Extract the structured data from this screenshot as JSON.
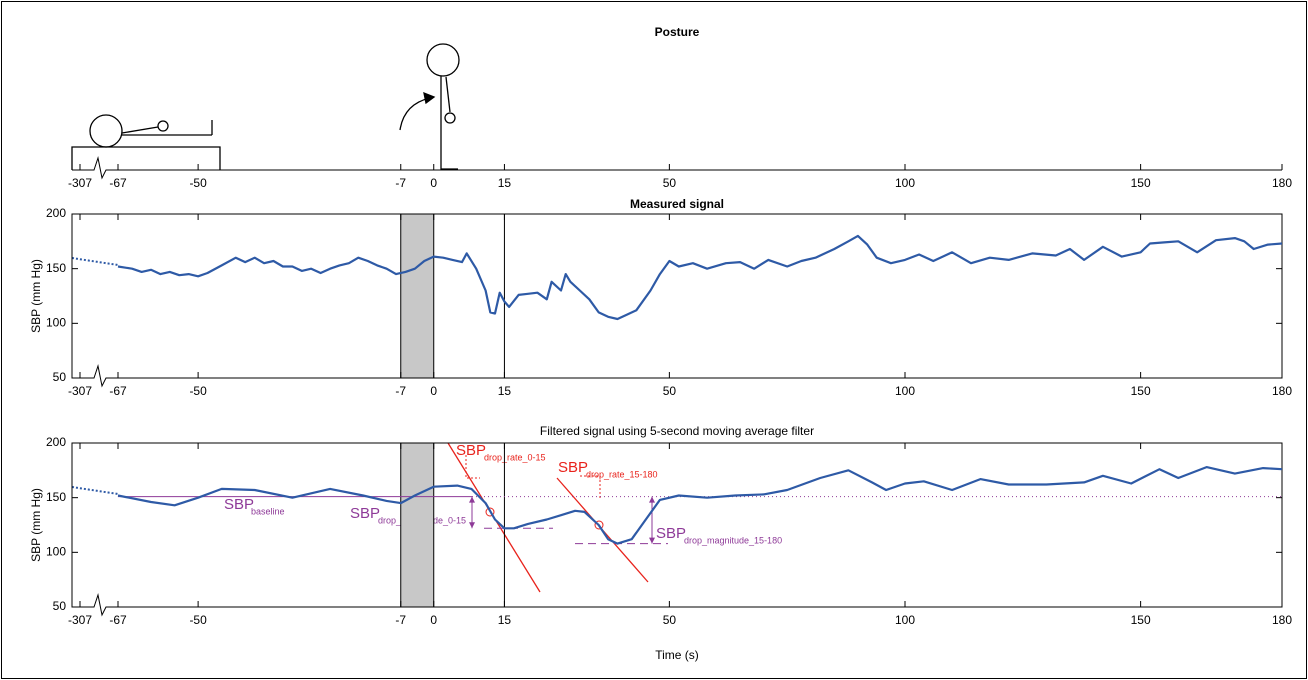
{
  "chart_data": [
    {
      "type": "timeline",
      "title": "Posture",
      "xlim": [
        -307,
        180
      ],
      "x_break": [
        -307,
        -67
      ],
      "xticks": [
        -307,
        -67,
        -50,
        -7,
        0,
        15,
        50,
        100,
        150,
        180
      ]
    },
    {
      "type": "line",
      "title": "Measured signal",
      "y_label": "SBP (mm Hg)",
      "xlim": [
        -307,
        180
      ],
      "x_break": [
        -307,
        -67
      ],
      "xticks": [
        -307,
        -67,
        -50,
        -7,
        0,
        15,
        50,
        100,
        150,
        180
      ],
      "ylim": [
        50,
        200
      ],
      "yticks": [
        50,
        100,
        150,
        200
      ],
      "shaded": [
        -7,
        0
      ],
      "vlines": [
        15
      ],
      "series": [
        {
          "color": "#2e5aa6",
          "x": [
            -67,
            -64,
            -62,
            -60,
            -58,
            -56,
            -54,
            -52,
            -50,
            -48,
            -45,
            -42,
            -40,
            -38,
            -36,
            -34,
            -32,
            -30,
            -28,
            -26,
            -24,
            -22,
            -20,
            -18,
            -16,
            -14,
            -12,
            -10,
            -8,
            -6,
            -4,
            -2,
            0,
            2,
            4,
            6,
            7,
            9,
            11,
            12,
            13,
            14,
            15,
            16,
            18,
            20,
            22,
            24,
            25,
            27,
            28,
            29,
            31,
            33,
            35,
            37,
            39,
            41,
            43,
            46,
            48,
            50,
            52,
            55,
            58,
            62,
            65,
            68,
            71,
            75,
            78,
            81,
            85,
            88,
            90,
            92,
            94,
            97,
            100,
            103,
            106,
            110,
            114,
            118,
            122,
            127,
            132,
            135,
            138,
            142,
            146,
            150,
            152,
            155,
            158,
            162,
            166,
            170,
            172,
            174,
            177,
            180
          ],
          "values": [
            152,
            150,
            147,
            149,
            145,
            147,
            144,
            145,
            143,
            146,
            153,
            160,
            156,
            160,
            155,
            157,
            152,
            152,
            148,
            150,
            146,
            150,
            153,
            155,
            160,
            157,
            153,
            150,
            145,
            147,
            150,
            157,
            161,
            160,
            158,
            156,
            164,
            150,
            130,
            110,
            109,
            128,
            120,
            115,
            126,
            127,
            128,
            122,
            138,
            130,
            145,
            138,
            130,
            122,
            110,
            106,
            104,
            108,
            112,
            130,
            145,
            157,
            152,
            155,
            150,
            155,
            156,
            150,
            158,
            152,
            157,
            160,
            168,
            175,
            180,
            172,
            160,
            155,
            158,
            163,
            157,
            165,
            155,
            160,
            158,
            164,
            162,
            168,
            158,
            170,
            161,
            165,
            173,
            174,
            175,
            165,
            176,
            178,
            175,
            168,
            172,
            173
          ]
        }
      ]
    },
    {
      "type": "line",
      "title": "Filtered signal using 5-second moving average filter",
      "y_label": "SBP (mm Hg)",
      "x_label": "Time (s)",
      "xlim": [
        -307,
        180
      ],
      "x_break": [
        -307,
        -67
      ],
      "xticks": [
        -307,
        -67,
        -50,
        -7,
        0,
        15,
        50,
        100,
        150,
        180
      ],
      "ylim": [
        50,
        200
      ],
      "yticks": [
        50,
        100,
        150,
        200
      ],
      "shaded": [
        -7,
        0
      ],
      "vlines": [
        15
      ],
      "baseline": 151,
      "drop_minima": [
        122,
        108
      ],
      "series": [
        {
          "color": "#2e5aa6",
          "x": [
            -67,
            -60,
            -55,
            -50,
            -45,
            -38,
            -30,
            -22,
            -15,
            -10,
            -7,
            -4,
            0,
            5,
            8,
            11,
            13,
            15,
            17,
            20,
            24,
            27,
            30,
            32,
            35,
            37,
            39,
            42,
            45,
            48,
            52,
            58,
            64,
            70,
            75,
            82,
            88,
            93,
            96,
            100,
            104,
            110,
            116,
            122,
            130,
            138,
            142,
            148,
            154,
            158,
            164,
            170,
            176,
            180
          ],
          "values": [
            152,
            146,
            143,
            150,
            158,
            157,
            150,
            158,
            152,
            147,
            145,
            152,
            160,
            161,
            158,
            145,
            130,
            122,
            122,
            126,
            130,
            134,
            138,
            137,
            125,
            112,
            108,
            112,
            130,
            148,
            152,
            150,
            152,
            153,
            157,
            168,
            175,
            164,
            157,
            163,
            165,
            157,
            167,
            162,
            162,
            164,
            170,
            163,
            176,
            168,
            178,
            172,
            177,
            176
          ]
        }
      ],
      "annotations": [
        {
          "text": "SBP",
          "subscript": "drop_rate_0-15"
        },
        {
          "text": "SBP",
          "subscript": "drop_rate_15-180"
        },
        {
          "text": "SBP",
          "subscript": "baseline"
        },
        {
          "text": "SBP",
          "subscript": "drop_magnitude_0-15"
        },
        {
          "text": "SBP",
          "subscript": "drop_magnitude_15-180"
        }
      ]
    }
  ]
}
